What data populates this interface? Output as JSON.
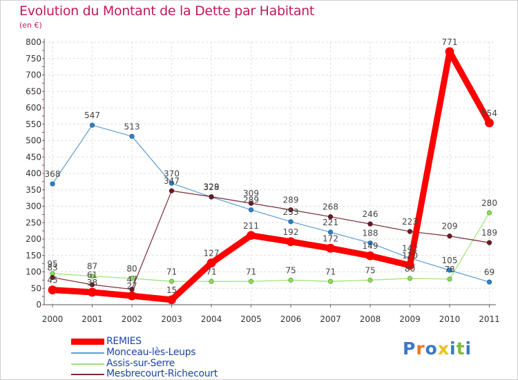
{
  "title": "Evolution du Montant de la Dette par Habitant",
  "unit_label": "(en €)",
  "logo": {
    "letters": [
      "P",
      "r",
      "o",
      "x",
      "i",
      "t",
      "i"
    ],
    "colors": [
      "#3a78c4",
      "#e8791b",
      "#3a78c4",
      "#e8c21b",
      "#3a78c4",
      "#7dbd3a",
      "#3a78c4"
    ]
  },
  "chart_data": {
    "type": "line",
    "x": [
      "2000",
      "2001",
      "2002",
      "2003",
      "2004",
      "2005",
      "2006",
      "2007",
      "2008",
      "2009",
      "2010",
      "2011"
    ],
    "ylim": [
      0,
      800
    ],
    "yticks": [
      0,
      50,
      100,
      150,
      200,
      250,
      300,
      350,
      400,
      450,
      500,
      550,
      600,
      650,
      700,
      750,
      800
    ],
    "grid": true,
    "legend_position": "bottom-left",
    "series": [
      {
        "name": "Monceau-lès-Leups",
        "color": "#5b9bd5",
        "values": [
          368,
          547,
          513,
          370,
          328,
          289,
          253,
          221,
          188,
          142,
          105,
          69
        ]
      },
      {
        "name": "Assis-sur-Serre",
        "color": "#99e36e",
        "values": [
          95,
          87,
          80,
          71,
          71,
          71,
          75,
          71,
          75,
          80,
          78,
          280
        ]
      },
      {
        "name": "Mesbrecourt-Richecourt",
        "color": "#7a2a32",
        "values": [
          83,
          61,
          47,
          347,
          329,
          309,
          289,
          268,
          246,
          223,
          209,
          189
        ]
      },
      {
        "name": "REMIES",
        "color": "#ff0000",
        "values": [
          45,
          38,
          27,
          15,
          127,
          211,
          192,
          172,
          149,
          120,
          771,
          554
        ]
      }
    ]
  }
}
